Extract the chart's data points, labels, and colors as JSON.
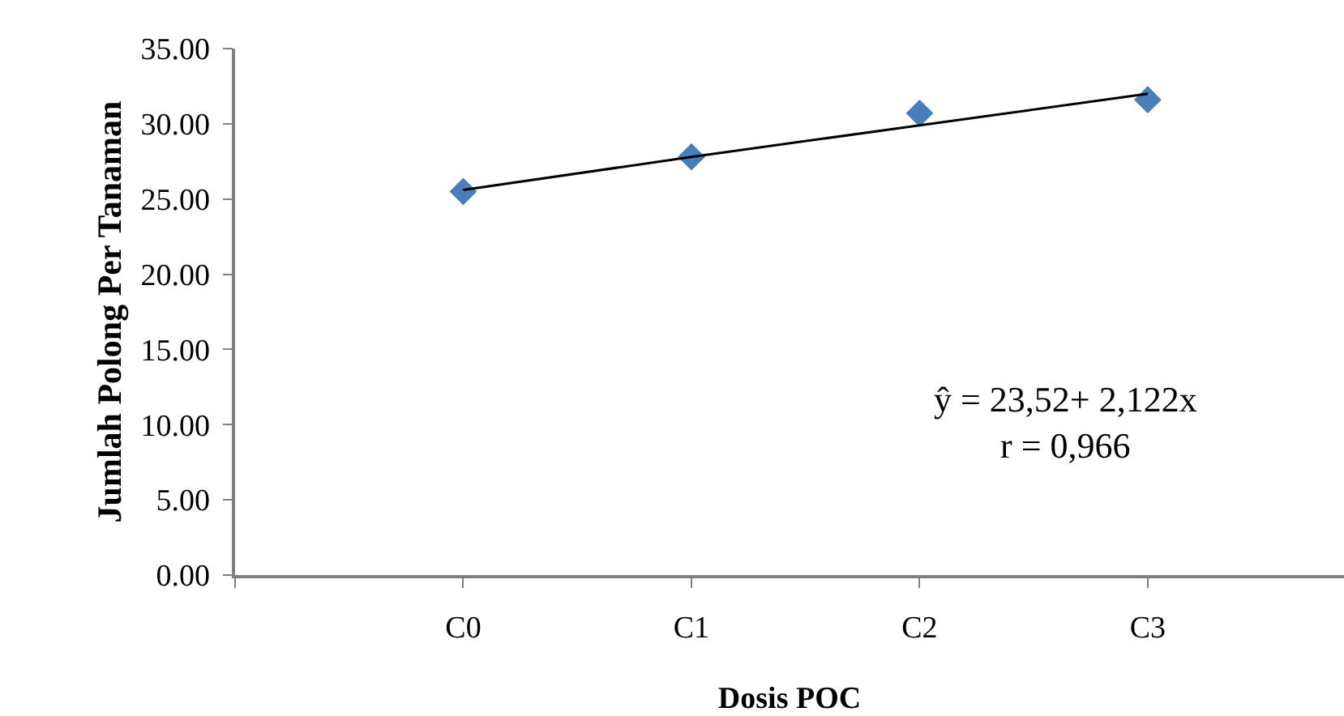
{
  "chart_data": {
    "type": "scatter",
    "xlabel": "Dosis POC",
    "ylabel": "Jumlah Polong Per Tanaman",
    "categories": [
      "C0",
      "C1",
      "C2",
      "C3"
    ],
    "series": [
      {
        "color": "#4a7ebb",
        "values": [
          25.5,
          27.8,
          30.7,
          31.6
        ],
        "marker": "diamond"
      },
      {
        "type": "line",
        "values": [
          25.6,
          27.8,
          29.9,
          32.0
        ],
        "color": "#000000",
        "marker": "none",
        "line_style": "solid"
      }
    ],
    "ylim": [
      0,
      35
    ],
    "yticks": [
      {
        "value": 0,
        "label": "0.00"
      },
      {
        "value": 5,
        "label": "5.00"
      },
      {
        "value": 10,
        "label": "10.00"
      },
      {
        "value": 15,
        "label": "15.00"
      },
      {
        "value": 20,
        "label": "20.00"
      },
      {
        "value": 25,
        "label": "25.00"
      },
      {
        "value": 30,
        "label": "30.00"
      },
      {
        "value": 35,
        "label": "35.00"
      }
    ],
    "annotations": [
      "ŷ = 23,52+ 2,122x\nr = 0,966"
    ],
    "grid": false
  }
}
